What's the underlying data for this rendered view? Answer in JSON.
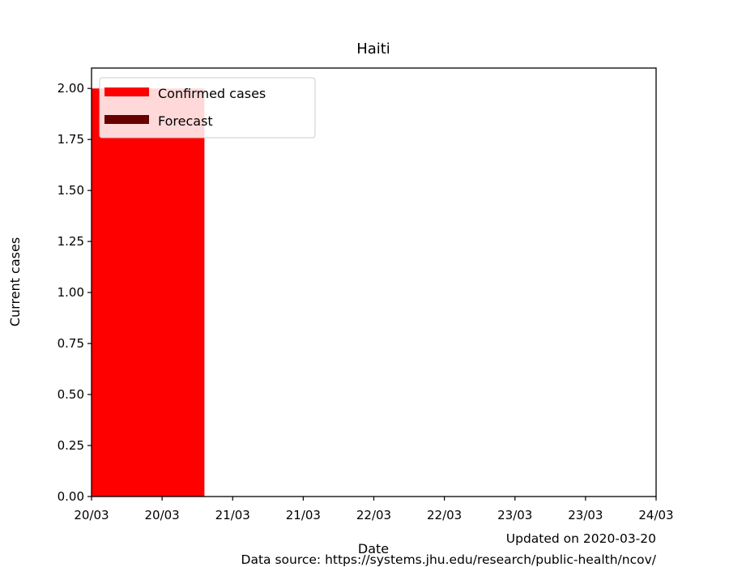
{
  "chart_data": {
    "type": "bar",
    "title": "Haiti",
    "xlabel": "Date",
    "ylabel": "Current cases",
    "x_ticks": [
      "20/03",
      "20/03",
      "21/03",
      "21/03",
      "22/03",
      "22/03",
      "23/03",
      "23/03",
      "24/03"
    ],
    "y_ticks": [
      "0.00",
      "0.25",
      "0.50",
      "0.75",
      "1.00",
      "1.25",
      "1.50",
      "1.75",
      "2.00"
    ],
    "ylim": [
      0,
      2.1
    ],
    "xlim": [
      "2020-03-20T00:00",
      "2020-03-24T00:00"
    ],
    "series": [
      {
        "name": "Confirmed cases",
        "color": "#ff0000",
        "bars": [
          {
            "start": "2020-03-20T00:00",
            "end": "2020-03-20T19:12",
            "value": 2
          }
        ]
      },
      {
        "name": "Forecast",
        "color": "#660000",
        "bars": []
      }
    ],
    "legend_position": "top-left",
    "grid": false
  },
  "footer": {
    "updated": "Updated on 2020-03-20",
    "source": "Data source: https://systems.jhu.edu/research/public-health/ncov/"
  }
}
